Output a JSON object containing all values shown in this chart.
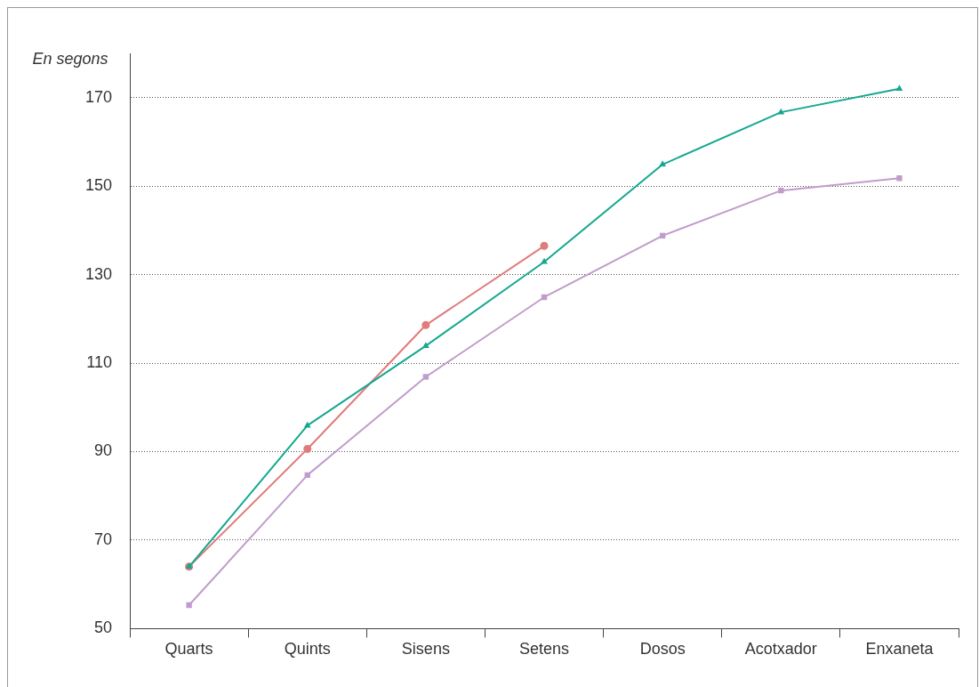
{
  "chart_data": {
    "type": "line",
    "ylabel": "En segons",
    "categories": [
      "Quarts",
      "Quints",
      "Sisens",
      "Setens",
      "Dosos",
      "Acotxador",
      "Enxaneta"
    ],
    "series": [
      {
        "color": "#e07b7b",
        "marker": "circle",
        "values": [
          64,
          90.6,
          118.6,
          136.5,
          null,
          null,
          null
        ]
      },
      {
        "color": "#14a890",
        "marker": "triangle",
        "values": [
          64,
          95.9,
          113.9,
          132.9,
          154.9,
          166.7,
          172
        ]
      },
      {
        "color": "#c09ccc",
        "marker": "square",
        "values": [
          55.3,
          84.7,
          106.9,
          124.9,
          138.8,
          149,
          151.8
        ]
      }
    ],
    "ylim": [
      50,
      180
    ],
    "yticks": [
      50,
      70,
      90,
      110,
      130,
      150,
      170
    ],
    "grid": "y",
    "legend": false
  }
}
